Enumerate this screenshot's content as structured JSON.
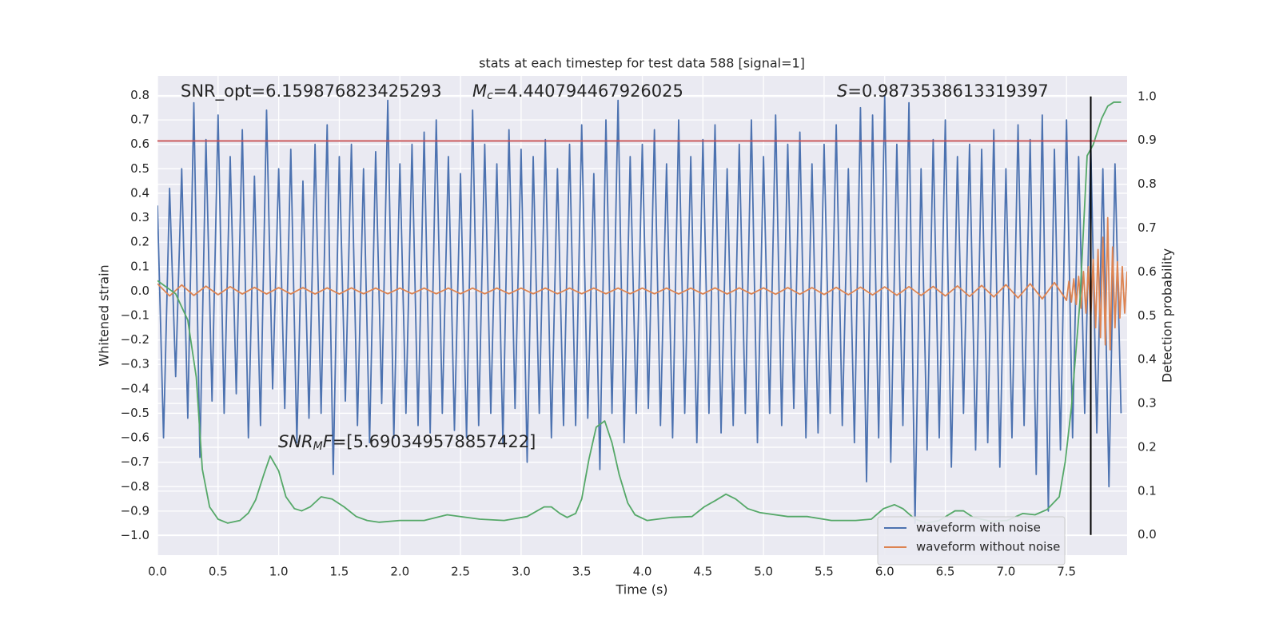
{
  "chart_data": {
    "type": "line",
    "title": "stats at each timestep for test data 588 [signal=1]",
    "x_label": "Time (s)",
    "y_label": "Whitened strain",
    "y2_label": "Detection probability",
    "annotations": [
      {
        "text": "SNR_opt=6.159876823425293"
      },
      {
        "symbol": "M",
        "sub": "c",
        "text": "=4.440794467926025"
      },
      {
        "symbol": "S",
        "text": "=0.9873538613319397"
      },
      {
        "symbol": "SNR",
        "sub": "M",
        "symbol2": "F",
        "text": "=[5.690349578857422]"
      }
    ],
    "grid": true,
    "legend": "lower right",
    "xlim": [
      0,
      8
    ],
    "ylim": [
      -1.08,
      0.88
    ],
    "y2lim": [
      -0.046,
      1.047
    ],
    "xticks": [
      {
        "value": 0,
        "label": "0.0"
      },
      0.5,
      {
        "value": 1,
        "label": "1.0"
      },
      1.5,
      {
        "value": 2,
        "label": "2.0"
      },
      2.5,
      {
        "value": 3,
        "label": "3.0"
      },
      3.5,
      {
        "value": 4,
        "label": "4.0"
      },
      4.5,
      {
        "value": 5,
        "label": "5.0"
      },
      5.5,
      {
        "value": 6,
        "label": "6.0"
      },
      6.5,
      {
        "value": 7,
        "label": "7.0"
      },
      7.5
    ],
    "yticks": [
      {
        "value": -1,
        "label": "−1.0"
      },
      {
        "value": -0.9,
        "label": "−0.9"
      },
      {
        "value": -0.8,
        "label": "−0.8"
      },
      {
        "value": -0.7,
        "label": "−0.7"
      },
      {
        "value": -0.6,
        "label": "−0.6"
      },
      {
        "value": -0.5,
        "label": "−0.5"
      },
      {
        "value": -0.4,
        "label": "−0.4"
      },
      {
        "value": -0.3,
        "label": "−0.3"
      },
      {
        "value": -0.2,
        "label": "−0.2"
      },
      {
        "value": -0.1,
        "label": "−0.1"
      },
      {
        "value": 0,
        "label": "0.0"
      },
      0.1,
      0.2,
      0.3,
      0.4,
      0.5,
      0.6,
      0.7,
      0.8
    ],
    "y2ticks": [
      {
        "value": 0,
        "label": "0.0"
      },
      0.1,
      0.2,
      0.3,
      0.4,
      0.5,
      0.6,
      0.7,
      0.8,
      0.9,
      {
        "value": 1,
        "label": "1.0"
      }
    ],
    "hline": {
      "y": 0.614,
      "color": "#c44e52"
    },
    "vline": {
      "x": 7.7,
      "ymin": 0,
      "ymax": 1,
      "axis": "y2",
      "color": "#000000"
    },
    "series": [
      {
        "name": "waveform with noise",
        "color": "#4c72b0",
        "x": [
          0,
          0.05,
          0.1,
          0.15,
          0.2,
          0.25,
          0.3,
          0.35,
          0.4,
          0.45,
          0.5,
          0.55,
          0.6,
          0.65,
          0.7,
          0.75,
          0.8,
          0.85,
          0.9,
          0.95,
          1,
          1.05,
          1.1,
          1.15,
          1.2,
          1.25,
          1.3,
          1.35,
          1.4,
          1.45,
          1.5,
          1.55,
          1.6,
          1.65,
          1.7,
          1.75,
          1.8,
          1.85,
          1.9,
          1.95,
          2,
          2.05,
          2.1,
          2.15,
          2.2,
          2.25,
          2.3,
          2.35,
          2.4,
          2.45,
          2.5,
          2.55,
          2.6,
          2.65,
          2.7,
          2.75,
          2.8,
          2.85,
          2.9,
          2.95,
          3,
          3.05,
          3.1,
          3.15,
          3.2,
          3.25,
          3.3,
          3.35,
          3.4,
          3.45,
          3.5,
          3.55,
          3.6,
          3.65,
          3.7,
          3.75,
          3.8,
          3.85,
          3.9,
          3.95,
          4,
          4.05,
          4.1,
          4.15,
          4.2,
          4.25,
          4.3,
          4.35,
          4.4,
          4.45,
          4.5,
          4.55,
          4.6,
          4.65,
          4.7,
          4.75,
          4.8,
          4.85,
          4.9,
          4.95,
          5,
          5.05,
          5.1,
          5.15,
          5.2,
          5.25,
          5.3,
          5.35,
          5.4,
          5.45,
          5.5,
          5.55,
          5.6,
          5.65,
          5.7,
          5.75,
          5.8,
          5.85,
          5.9,
          5.95,
          6,
          6.05,
          6.1,
          6.15,
          6.2,
          6.25,
          6.3,
          6.35,
          6.4,
          6.45,
          6.5,
          6.55,
          6.6,
          6.65,
          6.7,
          6.75,
          6.8,
          6.85,
          6.9,
          6.95,
          7,
          7.05,
          7.1,
          7.15,
          7.2,
          7.25,
          7.3,
          7.35,
          7.4,
          7.45,
          7.5,
          7.55,
          7.6,
          7.65,
          7.7,
          7.75,
          7.8,
          7.85,
          7.9,
          7.95
        ],
        "values": [
          0.35,
          -0.6,
          0.42,
          -0.35,
          0.5,
          -0.52,
          0.77,
          -0.68,
          0.62,
          -0.45,
          0.72,
          -0.5,
          0.55,
          -0.42,
          0.66,
          -0.6,
          0.47,
          -0.55,
          0.74,
          -0.4,
          0.5,
          -0.48,
          0.58,
          -0.62,
          0.45,
          -0.52,
          0.6,
          -0.5,
          0.68,
          -0.75,
          0.55,
          -0.45,
          0.6,
          -0.55,
          0.5,
          -0.62,
          0.57,
          -0.46,
          0.78,
          -0.6,
          0.52,
          -0.5,
          0.6,
          -0.55,
          0.65,
          -0.58,
          0.7,
          -0.5,
          0.55,
          -0.57,
          0.48,
          -0.6,
          0.74,
          -0.55,
          0.6,
          -0.5,
          0.52,
          -0.62,
          0.66,
          -0.48,
          0.58,
          -0.7,
          0.55,
          -0.5,
          0.62,
          -0.6,
          0.5,
          -0.55,
          0.6,
          -0.55,
          0.68,
          -0.52,
          0.48,
          -0.73,
          0.7,
          -0.5,
          0.78,
          -0.62,
          0.55,
          -0.5,
          0.6,
          -0.48,
          0.66,
          -0.55,
          0.52,
          -0.6,
          0.7,
          -0.5,
          0.55,
          -0.62,
          0.62,
          -0.5,
          0.68,
          -0.58,
          0.5,
          -0.55,
          0.6,
          -0.5,
          0.7,
          -0.62,
          0.55,
          -0.5,
          0.72,
          -0.55,
          0.6,
          -0.48,
          0.65,
          -0.6,
          0.52,
          -0.58,
          0.6,
          -0.5,
          0.68,
          -0.55,
          0.5,
          -0.62,
          0.75,
          -0.78,
          0.72,
          -0.6,
          0.8,
          -0.7,
          0.6,
          -0.55,
          0.77,
          -0.95,
          0.5,
          -0.65,
          0.62,
          -0.6,
          0.7,
          -0.72,
          0.55,
          -0.5,
          0.6,
          -0.65,
          0.58,
          -0.62,
          0.66,
          -0.72,
          0.5,
          -0.6,
          0.68,
          -0.55,
          0.62,
          -0.75,
          0.72,
          -0.9,
          0.58,
          -0.65,
          0.7,
          -0.6,
          0.55,
          -0.5,
          0.6,
          -0.58,
          0.5,
          -0.8,
          0.52,
          -0.5
        ]
      },
      {
        "name": "waveform without noise",
        "color": "#dd8452",
        "x": [
          0,
          0.1,
          0.2,
          0.3,
          0.4,
          0.5,
          0.6,
          0.7,
          0.8,
          0.9,
          1,
          1.1,
          1.2,
          1.3,
          1.4,
          1.5,
          1.6,
          1.7,
          1.8,
          1.9,
          2,
          2.1,
          2.2,
          2.3,
          2.4,
          2.5,
          2.6,
          2.7,
          2.8,
          2.9,
          3,
          3.1,
          3.2,
          3.3,
          3.4,
          3.5,
          3.6,
          3.7,
          3.8,
          3.9,
          4,
          4.1,
          4.2,
          4.3,
          4.4,
          4.5,
          4.6,
          4.7,
          4.8,
          4.9,
          5,
          5.1,
          5.2,
          5.3,
          5.4,
          5.5,
          5.6,
          5.7,
          5.8,
          5.9,
          6,
          6.1,
          6.2,
          6.3,
          6.4,
          6.5,
          6.6,
          6.7,
          6.8,
          6.9,
          7,
          7.1,
          7.2,
          7.3,
          7.4,
          7.5,
          7.52,
          7.54,
          7.56,
          7.58,
          7.6,
          7.62,
          7.64,
          7.66,
          7.68,
          7.7,
          7.72,
          7.74,
          7.76,
          7.78,
          7.8,
          7.82,
          7.84,
          7.86,
          7.88,
          7.9,
          7.92,
          7.94,
          7.96,
          7.98,
          8
        ],
        "values": [
          0.03,
          -0.02,
          0.025,
          -0.018,
          0.02,
          -0.015,
          0.018,
          -0.012,
          0.015,
          -0.012,
          0.014,
          -0.012,
          0.014,
          -0.012,
          0.013,
          -0.012,
          0.013,
          -0.011,
          0.012,
          -0.011,
          0.012,
          -0.011,
          0.012,
          -0.011,
          0.012,
          -0.011,
          0.012,
          -0.011,
          0.012,
          -0.011,
          0.012,
          -0.011,
          0.012,
          -0.011,
          0.012,
          -0.011,
          0.012,
          -0.011,
          0.012,
          -0.011,
          0.012,
          -0.011,
          0.012,
          -0.012,
          0.012,
          -0.012,
          0.013,
          -0.012,
          0.013,
          -0.012,
          0.013,
          -0.013,
          0.014,
          -0.013,
          0.014,
          -0.014,
          0.015,
          -0.015,
          0.016,
          -0.016,
          0.017,
          -0.017,
          0.018,
          -0.018,
          0.019,
          -0.02,
          0.021,
          -0.022,
          0.023,
          -0.024,
          0.026,
          -0.028,
          0.03,
          -0.032,
          0.035,
          -0.038,
          0.04,
          -0.045,
          0.05,
          -0.055,
          0.06,
          -0.07,
          0.08,
          -0.09,
          0.1,
          -0.11,
          0.13,
          -0.15,
          0.17,
          -0.19,
          0.22,
          -0.22,
          0.3,
          -0.24,
          0.18,
          -0.15,
          0.12,
          -0.11,
          0.1,
          -0.09,
          0.08
        ]
      },
      {
        "color": "#55a868",
        "axis": "y2",
        "x": [
          0,
          0.15,
          0.25,
          0.32,
          0.37,
          0.43,
          0.5,
          0.58,
          0.68,
          0.75,
          0.81,
          0.88,
          0.93,
          1,
          1.06,
          1.13,
          1.19,
          1.26,
          1.35,
          1.44,
          1.54,
          1.64,
          1.73,
          1.83,
          2,
          2.2,
          2.39,
          2.66,
          2.86,
          3.05,
          3.19,
          3.25,
          3.32,
          3.38,
          3.45,
          3.5,
          3.56,
          3.62,
          3.69,
          3.75,
          3.81,
          3.88,
          3.94,
          4.04,
          4.24,
          4.41,
          4.51,
          4.6,
          4.69,
          4.77,
          4.87,
          4.97,
          5.2,
          5.36,
          5.56,
          5.76,
          5.89,
          5.99,
          6.08,
          6.15,
          6.25,
          6.35,
          6.45,
          6.58,
          6.65,
          6.73,
          6.88,
          7.01,
          7.14,
          7.24,
          7.34,
          7.44,
          7.49,
          7.54,
          7.61,
          7.67,
          7.72,
          7.79,
          7.84,
          7.89,
          7.95
        ],
        "values": [
          0.58,
          0.55,
          0.49,
          0.36,
          0.15,
          0.064,
          0.036,
          0.027,
          0.033,
          0.05,
          0.08,
          0.14,
          0.18,
          0.146,
          0.087,
          0.06,
          0.055,
          0.064,
          0.087,
          0.082,
          0.064,
          0.042,
          0.033,
          0.029,
          0.033,
          0.033,
          0.046,
          0.036,
          0.033,
          0.042,
          0.064,
          0.064,
          0.049,
          0.04,
          0.049,
          0.082,
          0.173,
          0.246,
          0.26,
          0.21,
          0.137,
          0.073,
          0.046,
          0.033,
          0.04,
          0.042,
          0.064,
          0.078,
          0.093,
          0.082,
          0.06,
          0.051,
          0.042,
          0.042,
          0.033,
          0.033,
          0.036,
          0.06,
          0.069,
          0.06,
          0.036,
          0.027,
          0.033,
          0.055,
          0.055,
          0.04,
          0.031,
          0.033,
          0.049,
          0.046,
          0.058,
          0.087,
          0.168,
          0.29,
          0.53,
          0.865,
          0.89,
          0.95,
          0.978,
          0.987,
          0.987
        ]
      }
    ]
  }
}
